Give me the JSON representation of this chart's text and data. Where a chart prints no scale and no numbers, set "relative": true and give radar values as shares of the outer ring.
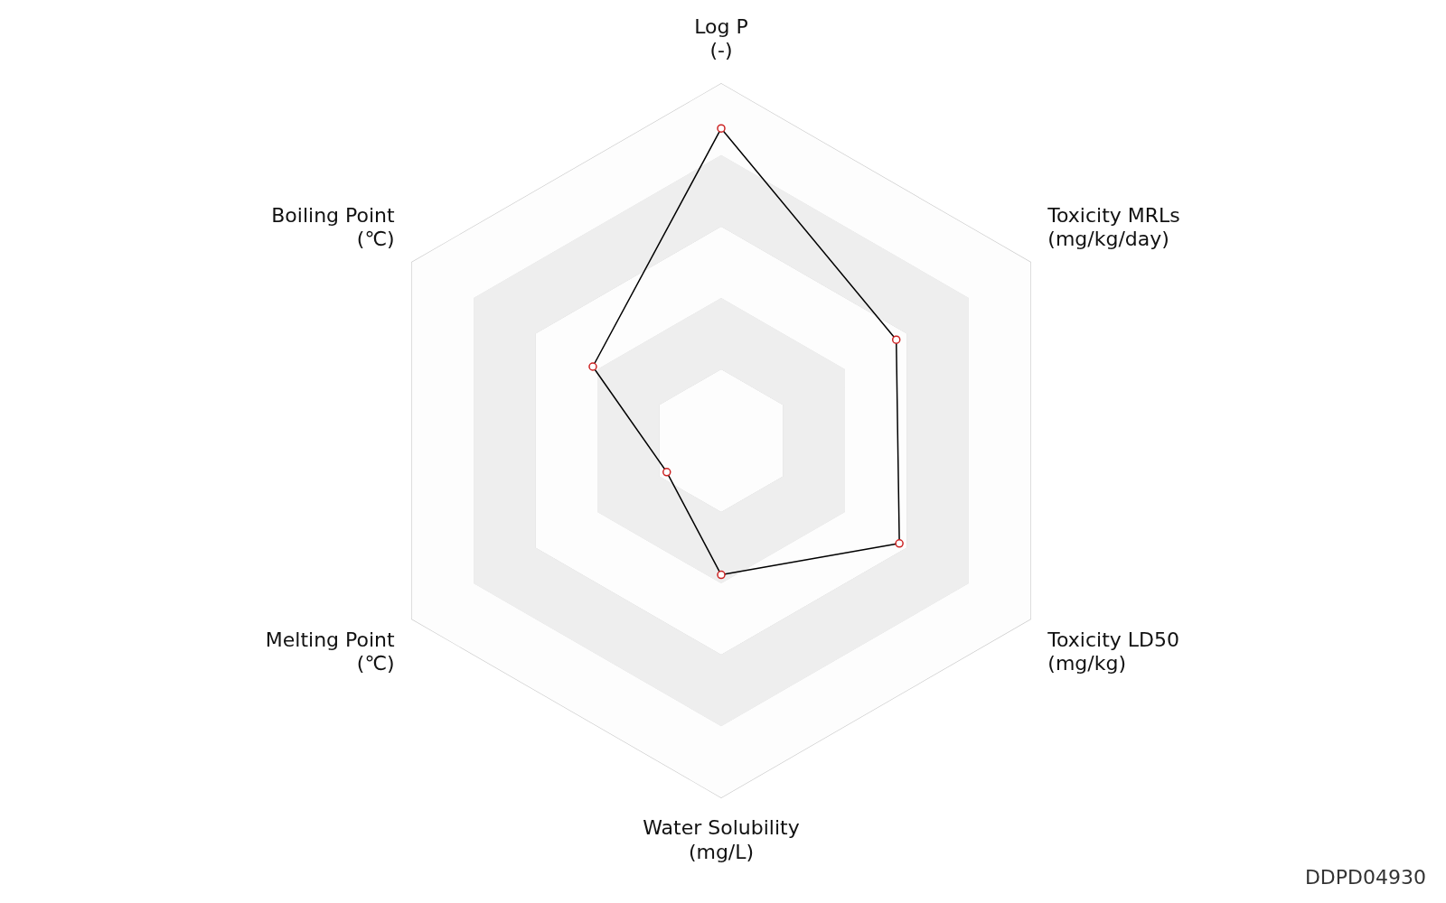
{
  "chart_data": {
    "type": "radar",
    "relative": true,
    "categories": [
      "Log P\n(-)",
      "Toxicity MRLs\n(mg/kg/day)",
      "Toxicity LD50\n(mg/kg)",
      "Water Solubility\n(mg/L)",
      "Melting Point\n(℃)",
      "Boiling Point\n(℃)"
    ],
    "series": [
      {
        "color": "#000000",
        "values": [
          0.875,
          0.566,
          0.576,
          0.376,
          0.176,
          0.415
        ]
      }
    ],
    "marker": "circle",
    "legend": false,
    "grid": true,
    "annotations": [
      "DDPD04930"
    ]
  }
}
